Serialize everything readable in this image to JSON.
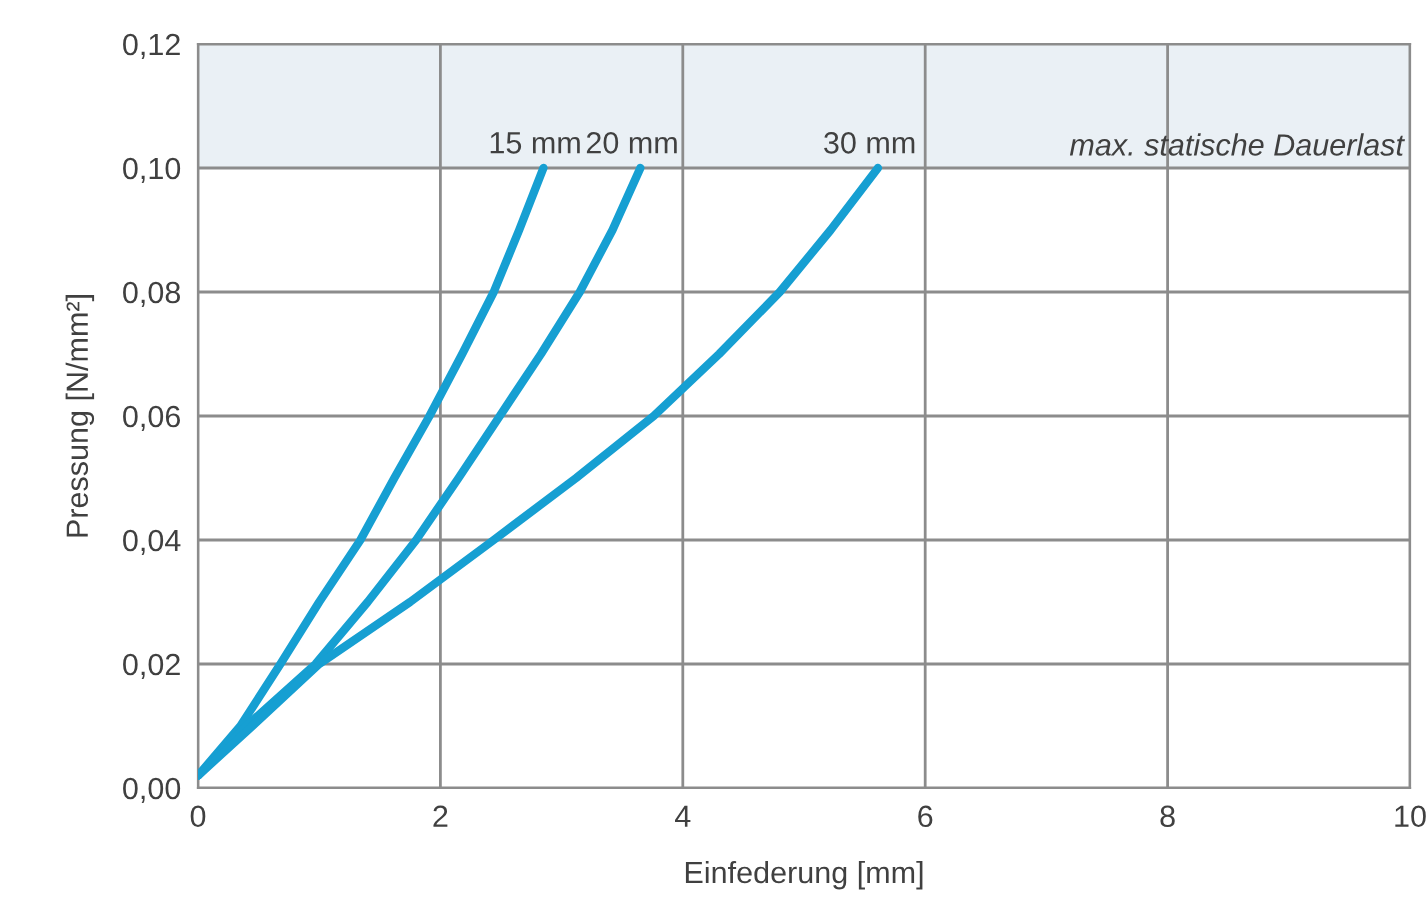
{
  "chart_data": {
    "type": "line",
    "xlabel": "Einfederung [mm]",
    "ylabel": "Pressung [N/mm²]",
    "xlim": [
      0,
      10
    ],
    "ylim": [
      0,
      0.12
    ],
    "xticks": [
      0,
      2,
      4,
      6,
      8,
      10
    ],
    "yticks": [
      {
        "value": 0,
        "label": "0,00"
      },
      {
        "value": 0.02,
        "label": "0,02"
      },
      {
        "value": 0.04,
        "label": "0,04"
      },
      {
        "value": 0.06,
        "label": "0,06"
      },
      {
        "value": 0.08,
        "label": "0,08"
      },
      {
        "value": 0.1,
        "label": "0,10"
      },
      {
        "value": 0.12,
        "label": "0,12"
      }
    ],
    "grid": true,
    "marker": "none",
    "line_style": "solid",
    "bands": [
      {
        "axis": "y",
        "from": 0.1,
        "to": 0.12,
        "label": "max. statische Dauerlast",
        "color": "#eaf0f5"
      }
    ],
    "series": [
      {
        "name": "15 mm",
        "color": "#169fd2",
        "x": [
          0,
          0.35,
          0.68,
          1.0,
          1.34,
          1.62,
          1.91,
          2.18,
          2.44,
          2.65,
          2.85
        ],
        "values": [
          0.002,
          0.01,
          0.02,
          0.03,
          0.04,
          0.05,
          0.06,
          0.07,
          0.08,
          0.09,
          0.1
        ]
      },
      {
        "name": "20 mm",
        "color": "#169fd2",
        "x": [
          0,
          0.4,
          0.97,
          1.4,
          1.8,
          2.15,
          2.49,
          2.83,
          3.15,
          3.42,
          3.65
        ],
        "values": [
          0.002,
          0.01,
          0.02,
          0.03,
          0.04,
          0.05,
          0.06,
          0.07,
          0.08,
          0.09,
          0.1
        ]
      },
      {
        "name": "30 mm",
        "color": "#169fd2",
        "x": [
          0,
          0.45,
          1.0,
          1.75,
          2.44,
          3.12,
          3.76,
          4.3,
          4.8,
          5.22,
          5.61
        ],
        "values": [
          0.002,
          0.01,
          0.02,
          0.03,
          0.04,
          0.05,
          0.06,
          0.07,
          0.08,
          0.09,
          0.1
        ]
      }
    ]
  }
}
